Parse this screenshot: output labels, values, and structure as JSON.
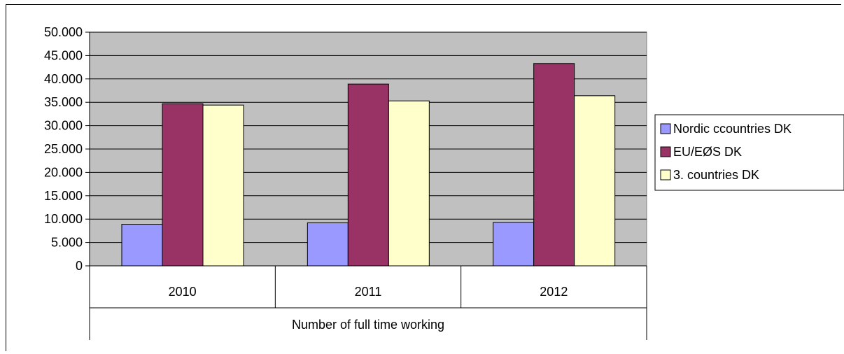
{
  "chart_data": {
    "type": "bar",
    "categories": [
      "2010",
      "2011",
      "2012"
    ],
    "group_label": "Number of full time working",
    "series": [
      {
        "name": "Nordic ccountries DK",
        "color": "#9999ff",
        "values": [
          8900,
          9200,
          9300
        ]
      },
      {
        "name": "EU/EØS DK",
        "color": "#993366",
        "values": [
          34700,
          38900,
          43300
        ]
      },
      {
        "name": "3. countries DK",
        "color": "#ffffcc",
        "values": [
          34400,
          35300,
          36400
        ]
      }
    ],
    "ylim": [
      0,
      50000
    ],
    "ytick_step": 5000,
    "ytick_labels": [
      "0",
      "5.000",
      "10.000",
      "15.000",
      "20.000",
      "25.000",
      "30.000",
      "35.000",
      "40.000",
      "45.000",
      "50.000"
    ],
    "plot_background": "#c0c0c0",
    "grid": true,
    "legend_position": "right"
  }
}
